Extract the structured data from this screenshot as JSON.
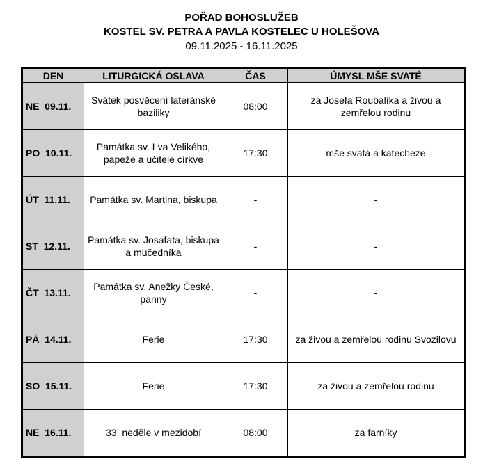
{
  "header": {
    "title": "POŘAD BOHOSLUŽEB",
    "subtitle": "KOSTEL SV. PETRA A PAVLA KOSTELEC U HOLEŠOVA",
    "date_range": "09.11.2025 - 16.11.2025"
  },
  "table": {
    "columns": [
      "DEN",
      "LITURGICKÁ OSLAVA",
      "ČAS",
      "ÚMYSL MŠE SVATÉ"
    ],
    "rows": [
      {
        "day": "NE  09.11.",
        "celebration": "Svátek posvěcení lateránské baziliky",
        "time": "08:00",
        "intention": "za Josefa Roubalíka a živou a zemřelou rodinu"
      },
      {
        "day": "PO  10.11.",
        "celebration": "Památka sv. Lva Velikého, papeže a učitele církve",
        "time": "17:30",
        "intention": "mše svatá a katecheze"
      },
      {
        "day": "ÚT  11.11.",
        "celebration": "Památka sv. Martina, biskupa",
        "time": "-",
        "intention": "-"
      },
      {
        "day": "ST  12.11.",
        "celebration": "Památka sv. Josafata, biskupa a mučedníka",
        "time": "-",
        "intention": "-"
      },
      {
        "day": "ČT  13.11.",
        "celebration": "Památka sv. Anežky České, panny",
        "time": "-",
        "intention": "-"
      },
      {
        "day": "PÁ  14.11.",
        "celebration": "Ferie",
        "time": "17:30",
        "intention": "za živou a zemřelou rodinu Svozilovu"
      },
      {
        "day": "SO  15.11.",
        "celebration": "Ferie",
        "time": "17:30",
        "intention": "za živou a zemřelou rodinu"
      },
      {
        "day": "NE  16.11.",
        "celebration": "33. neděle v mezidobí",
        "time": "08:00",
        "intention": "za farníky"
      }
    ]
  }
}
